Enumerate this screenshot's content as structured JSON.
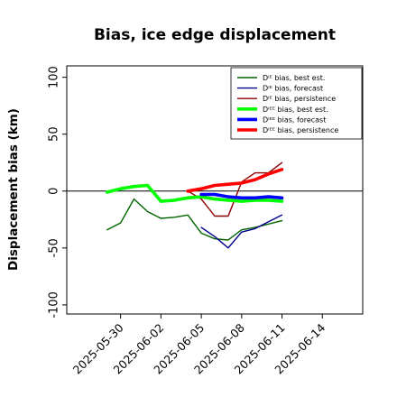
{
  "chart_data": {
    "type": "line",
    "title": "Bias, ice edge displacement",
    "xlabel": "",
    "ylabel": "Displacement bias (km)",
    "ylim": [
      -108,
      110
    ],
    "xlim": [
      "2025-05-26",
      "2025-06-17"
    ],
    "y_ticks": [
      -100,
      -50,
      0,
      50,
      100
    ],
    "x_ticks": [
      "2025-05-30",
      "2025-06-02",
      "2025-06-05",
      "2025-06-08",
      "2025-06-11",
      "2025-06-14"
    ],
    "highlighted_x_tick": "2025-06-05",
    "highlight_color": "#228B22",
    "zero_line": true,
    "grid": false,
    "legend_position": "top-right",
    "series": [
      {
        "name": "Dᴵᴱ bias, best est.",
        "color": "#006400",
        "line_width": "thin",
        "points": [
          [
            "2025-05-29",
            -34
          ],
          [
            "2025-05-30",
            -28
          ],
          [
            "2025-05-31",
            -7
          ],
          [
            "2025-06-01",
            -18
          ],
          [
            "2025-06-02",
            -24
          ],
          [
            "2025-06-03",
            -23
          ],
          [
            "2025-06-04",
            -21
          ],
          [
            "2025-06-05",
            -37
          ],
          [
            "2025-06-06",
            -42
          ],
          [
            "2025-06-07",
            -43
          ],
          [
            "2025-06-08",
            -34
          ],
          [
            "2025-06-09",
            -32
          ],
          [
            "2025-06-10",
            -29
          ],
          [
            "2025-06-11",
            -26
          ]
        ]
      },
      {
        "name": "Dᴵᴱ bias, forecast",
        "color": "#00008B",
        "line_width": "thin",
        "points": [
          [
            "2025-06-05",
            -32
          ],
          [
            "2025-06-06",
            -40
          ],
          [
            "2025-06-07",
            -50
          ],
          [
            "2025-06-08",
            -36
          ],
          [
            "2025-06-09",
            -33
          ],
          [
            "2025-06-10",
            -27
          ],
          [
            "2025-06-11",
            -21
          ]
        ]
      },
      {
        "name": "Dᴵᴱ bias, persistence",
        "color": "#8B0000",
        "line_width": "thin",
        "points": [
          [
            "2025-06-04",
            0
          ],
          [
            "2025-06-05",
            -7
          ],
          [
            "2025-06-06",
            -22
          ],
          [
            "2025-06-07",
            -22
          ],
          [
            "2025-06-08",
            8
          ],
          [
            "2025-06-09",
            16
          ],
          [
            "2025-06-10",
            16
          ],
          [
            "2025-06-11",
            25
          ]
        ]
      },
      {
        "name": "Dᴵᴱᴱ bias, best est.",
        "color": "#00FF00",
        "line_width": "thick",
        "points": [
          [
            "2025-05-29",
            -1
          ],
          [
            "2025-05-30",
            2
          ],
          [
            "2025-05-31",
            4
          ],
          [
            "2025-06-01",
            5
          ],
          [
            "2025-06-02",
            -9
          ],
          [
            "2025-06-03",
            -8
          ],
          [
            "2025-06-04",
            -6
          ],
          [
            "2025-06-05",
            -5
          ],
          [
            "2025-06-06",
            -7
          ],
          [
            "2025-06-07",
            -8
          ],
          [
            "2025-06-08",
            -9
          ],
          [
            "2025-06-09",
            -8
          ],
          [
            "2025-06-10",
            -8
          ],
          [
            "2025-06-11",
            -9
          ]
        ]
      },
      {
        "name": "Dᴵᴱᴱ bias, forecast",
        "color": "#0000FF",
        "line_width": "thick",
        "points": [
          [
            "2025-06-05",
            -3
          ],
          [
            "2025-06-06",
            -3
          ],
          [
            "2025-06-07",
            -5
          ],
          [
            "2025-06-08",
            -6
          ],
          [
            "2025-06-09",
            -6
          ],
          [
            "2025-06-10",
            -5
          ],
          [
            "2025-06-11",
            -6
          ]
        ]
      },
      {
        "name": "Dᴵᴱᴱ bias, persistence",
        "color": "#FF0000",
        "line_width": "thick",
        "points": [
          [
            "2025-06-04",
            0
          ],
          [
            "2025-06-05",
            2
          ],
          [
            "2025-06-06",
            5
          ],
          [
            "2025-06-07",
            6
          ],
          [
            "2025-06-08",
            7
          ],
          [
            "2025-06-09",
            10
          ],
          [
            "2025-06-10",
            15
          ],
          [
            "2025-06-11",
            19
          ]
        ]
      }
    ]
  }
}
